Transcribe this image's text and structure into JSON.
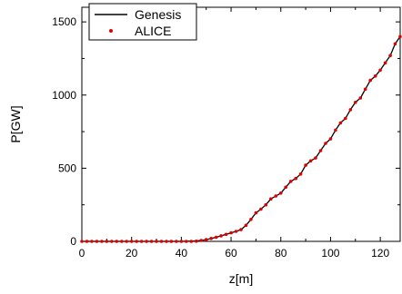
{
  "chart_data": {
    "type": "line",
    "xlabel": "z[m]",
    "ylabel": "P[GW]",
    "xlim": [
      0,
      128
    ],
    "ylim": [
      0,
      1600
    ],
    "xticks": [
      0,
      20,
      40,
      60,
      80,
      100,
      120
    ],
    "yticks": [
      0,
      500,
      1000,
      1500
    ],
    "grid": false,
    "legend_position": "top-left",
    "series": [
      {
        "name": "Genesis",
        "style": "line",
        "color": "#000000",
        "x": [
          0,
          10,
          20,
          30,
          40,
          45,
          48,
          50,
          52,
          54,
          56,
          58,
          60,
          62,
          64,
          66,
          68,
          70,
          72,
          74,
          76,
          78,
          80,
          82,
          84,
          86,
          88,
          90,
          92,
          94,
          96,
          98,
          100,
          102,
          104,
          106,
          108,
          110,
          112,
          114,
          116,
          118,
          120,
          122,
          124,
          126,
          128
        ],
        "y": [
          0,
          0,
          0,
          0,
          0,
          2,
          6,
          12,
          20,
          28,
          38,
          48,
          58,
          68,
          80,
          110,
          150,
          195,
          220,
          250,
          290,
          310,
          330,
          370,
          410,
          430,
          460,
          520,
          550,
          570,
          620,
          670,
          700,
          760,
          810,
          840,
          900,
          950,
          980,
          1040,
          1100,
          1130,
          1170,
          1220,
          1270,
          1350,
          1400
        ]
      },
      {
        "name": "ALICE",
        "style": "markers",
        "color": "#e00000",
        "x": [
          0,
          2,
          4,
          6,
          8,
          10,
          12,
          14,
          16,
          18,
          20,
          22,
          24,
          26,
          28,
          30,
          32,
          34,
          36,
          38,
          40,
          42,
          44,
          46,
          48,
          50,
          52,
          54,
          56,
          58,
          60,
          62,
          64,
          66,
          68,
          70,
          72,
          74,
          76,
          78,
          80,
          82,
          84,
          86,
          88,
          90,
          92,
          94,
          96,
          98,
          100,
          102,
          104,
          106,
          108,
          110,
          112,
          114,
          116,
          118,
          120,
          122,
          124,
          126,
          128
        ],
        "y": [
          0,
          0,
          0,
          0,
          0,
          0,
          0,
          0,
          0,
          0,
          0,
          0,
          0,
          0,
          0,
          0,
          0,
          0,
          0,
          0,
          0,
          0,
          0,
          1,
          6,
          12,
          20,
          28,
          38,
          48,
          58,
          68,
          80,
          110,
          150,
          195,
          220,
          250,
          290,
          310,
          330,
          370,
          410,
          430,
          460,
          520,
          550,
          570,
          620,
          670,
          700,
          760,
          810,
          840,
          900,
          950,
          980,
          1040,
          1100,
          1130,
          1170,
          1220,
          1270,
          1350,
          1400
        ]
      }
    ]
  }
}
